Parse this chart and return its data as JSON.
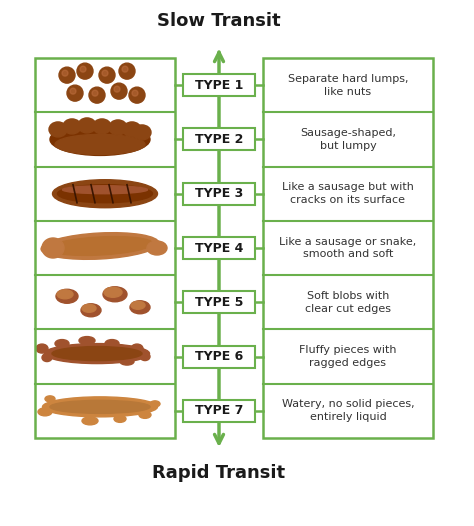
{
  "title_top": "Slow Transit",
  "title_bottom": "Rapid Transit",
  "background_color": "#ffffff",
  "green_color": "#6ab04c",
  "types": [
    "TYPE 1",
    "TYPE 2",
    "TYPE 3",
    "TYPE 4",
    "TYPE 5",
    "TYPE 6",
    "TYPE 7"
  ],
  "descriptions": [
    "Separate hard lumps,\nlike nuts",
    "Sausage-shaped,\nbut lumpy",
    "Like a sausage but with\ncracks on its surface",
    "Like a sausage or snake,\nsmooth and soft",
    "Soft blobs with\nclear cut edges",
    "Fluffy pieces with\nragged edges",
    "Watery, no solid pieces,\nentirely liquid"
  ],
  "title_fontsize": 13,
  "type_fontsize": 9,
  "desc_fontsize": 8,
  "fig_width": 4.74,
  "fig_height": 5.26,
  "dpi": 100
}
